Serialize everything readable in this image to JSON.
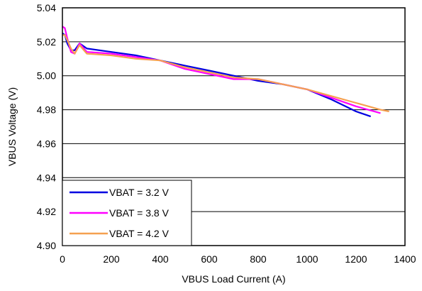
{
  "chart_data": {
    "type": "line",
    "title": "",
    "xlabel": "VBUS Load Current (A)",
    "ylabel": "VBUS Voltage (V)",
    "xlim": [
      0,
      1400
    ],
    "ylim": [
      4.9,
      5.04
    ],
    "x_ticks": [
      0,
      200,
      400,
      600,
      800,
      1000,
      1200,
      1400
    ],
    "y_ticks": [
      4.9,
      4.92,
      4.94,
      4.96,
      4.98,
      5.0,
      5.02,
      5.04
    ],
    "y_tick_labels": [
      "4.90",
      "4.92",
      "4.94",
      "4.96",
      "4.98",
      "5.00",
      "5.02",
      "5.04"
    ],
    "grid": "horizontal",
    "legend_position": "bottom-left",
    "series": [
      {
        "name": "VBAT = 3.2 V",
        "color": "#0000e0",
        "x": [
          0,
          10,
          20,
          35,
          50,
          70,
          100,
          200,
          300,
          400,
          500,
          600,
          700,
          800,
          900,
          1000,
          1100,
          1200,
          1260
        ],
        "y": [
          5.025,
          5.024,
          5.019,
          5.015,
          5.015,
          5.019,
          5.016,
          5.014,
          5.012,
          5.009,
          5.006,
          5.003,
          5.0,
          4.997,
          4.995,
          4.992,
          4.986,
          4.979,
          4.976
        ]
      },
      {
        "name": "VBAT = 3.8 V",
        "color": "#ff00ff",
        "x": [
          0,
          10,
          20,
          35,
          50,
          70,
          100,
          200,
          300,
          400,
          500,
          600,
          700,
          800,
          900,
          1000,
          1100,
          1200,
          1300
        ],
        "y": [
          5.029,
          5.028,
          5.022,
          5.014,
          5.013,
          5.019,
          5.014,
          5.013,
          5.011,
          5.009,
          5.004,
          5.001,
          4.998,
          4.998,
          4.995,
          4.992,
          4.987,
          4.982,
          4.978
        ]
      },
      {
        "name": "VBAT = 4.2 V",
        "color": "#f5a050",
        "x": [
          0,
          10,
          20,
          35,
          50,
          70,
          100,
          200,
          300,
          400,
          500,
          600,
          700,
          800,
          900,
          1000,
          1100,
          1200,
          1300,
          1335
        ],
        "y": [
          5.024,
          5.024,
          5.021,
          5.016,
          5.013,
          5.018,
          5.013,
          5.012,
          5.01,
          5.009,
          5.005,
          5.002,
          4.999,
          4.998,
          4.995,
          4.992,
          4.988,
          4.984,
          4.98,
          4.979
        ]
      }
    ]
  }
}
